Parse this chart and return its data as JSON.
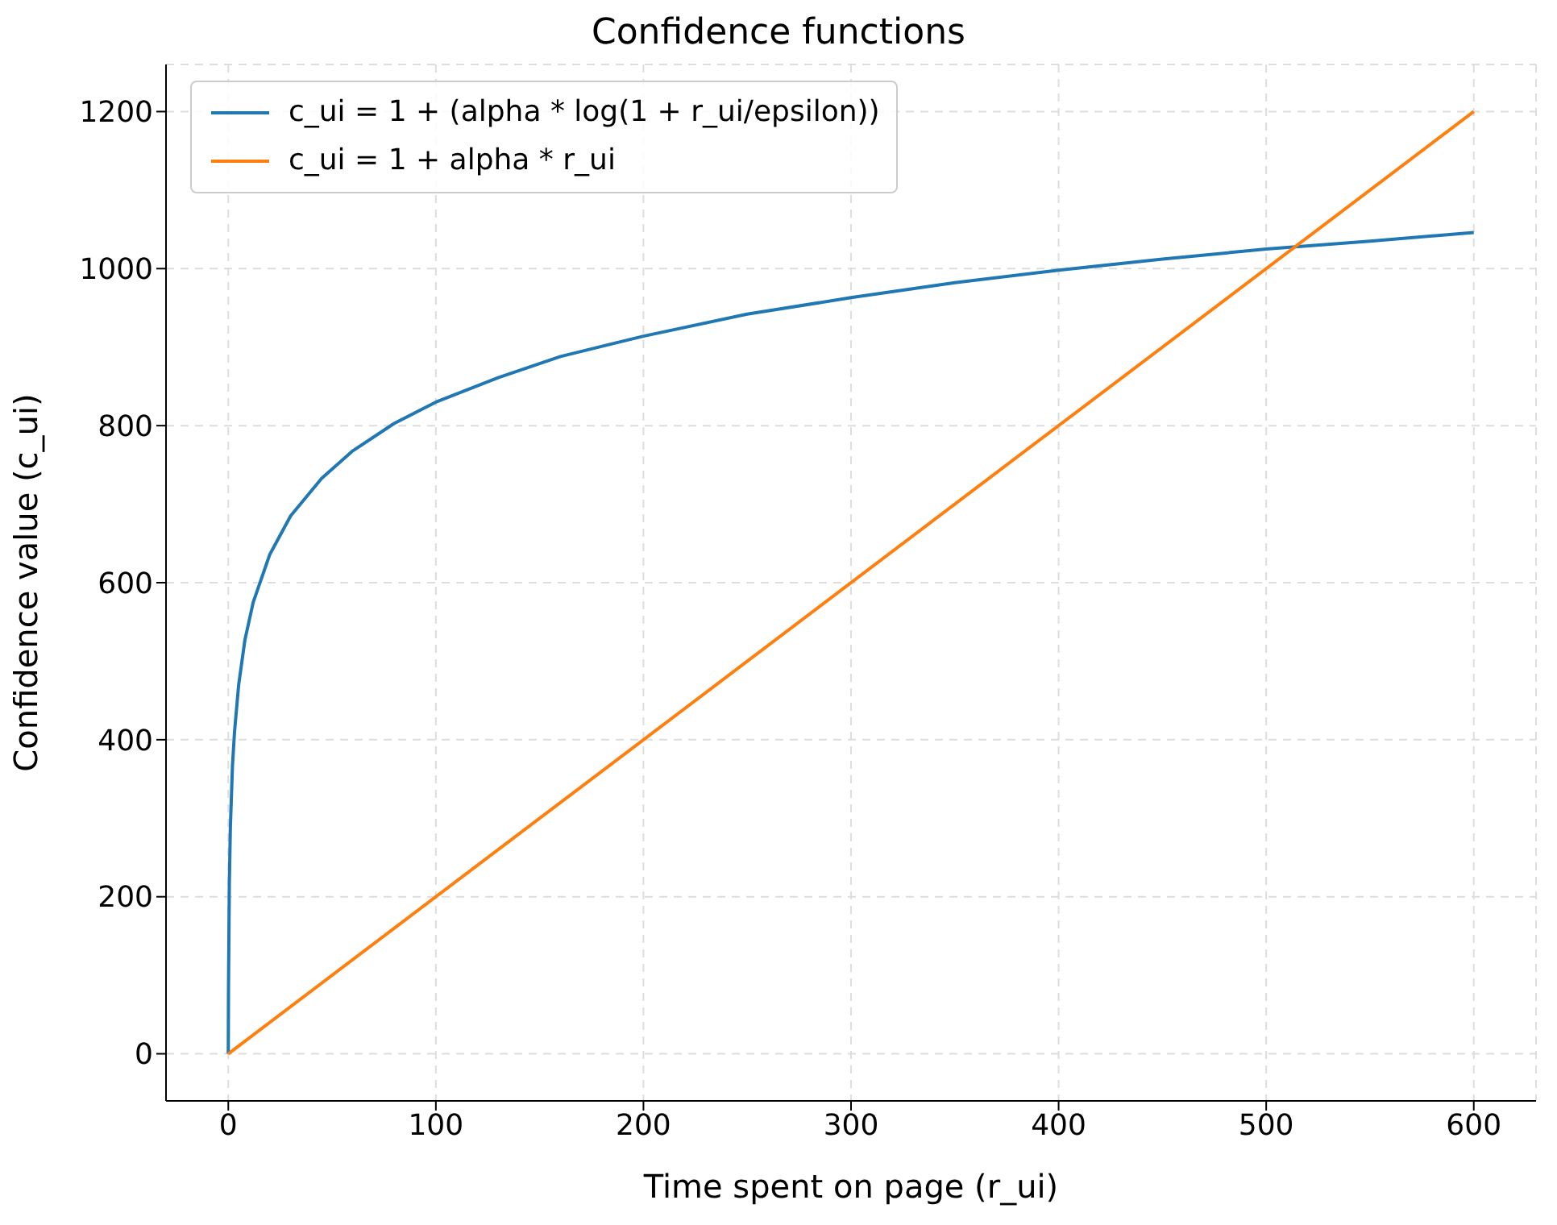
{
  "chart_data": {
    "type": "line",
    "title": "Confidence functions",
    "xlabel": "Time spent on page (r_ui)",
    "ylabel": "Confidence value (c_ui)",
    "xlim": [
      -30,
      630
    ],
    "ylim": [
      -60,
      1260
    ],
    "xticks": [
      0,
      100,
      200,
      300,
      400,
      500,
      600
    ],
    "yticks": [
      0,
      200,
      400,
      600,
      800,
      1000,
      1200
    ],
    "grid": true,
    "legend": "top left",
    "marker": "none",
    "line_style": "solid",
    "series": [
      {
        "name": "c_ui = 1 + (alpha * log(1 + r_ui/epsilon))",
        "color": "#1f77b4",
        "x": [
          0,
          0.1,
          0.5,
          1,
          2,
          3,
          5,
          8,
          12,
          20,
          30,
          45,
          60,
          80,
          100,
          130,
          160,
          200,
          250,
          300,
          350,
          400,
          450,
          500,
          550,
          600
        ],
        "values": [
          0,
          84,
          216,
          288,
          366,
          410,
          470,
          527,
          575,
          636,
          685,
          733,
          768,
          803,
          830,
          861,
          888,
          914,
          942,
          963,
          982,
          998,
          1012,
          1025,
          1035,
          1046
        ]
      },
      {
        "name": "c_ui = 1 + alpha * r_ui",
        "color": "#ff7f0e",
        "x": [
          0,
          600
        ],
        "values": [
          0,
          1200
        ]
      }
    ]
  }
}
